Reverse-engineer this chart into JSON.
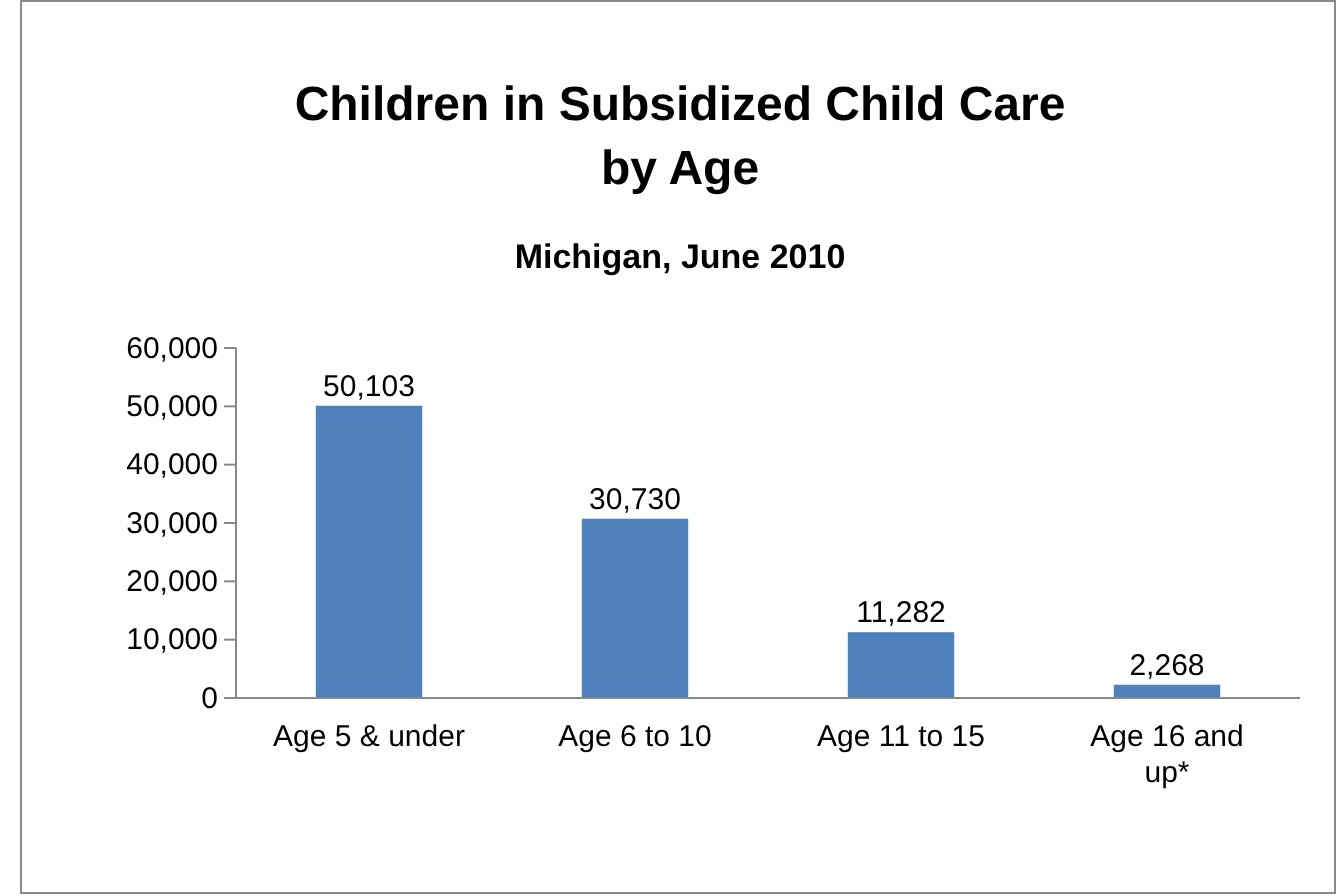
{
  "chart_data": {
    "type": "bar",
    "title": "Children in Subsidized Child Care by Age",
    "subtitle": "Michigan, June 2010",
    "categories": [
      "Age 5 & under",
      "Age 6 to 10",
      "Age 11 to 15",
      "Age 16 and up*"
    ],
    "values": [
      50103,
      30730,
      11282,
      2268
    ],
    "color": "#4f81bd",
    "ylim": [
      0,
      60000
    ],
    "yticks": [
      {
        "value": 0,
        "label": "0"
      },
      {
        "value": 10000,
        "label": "10,000"
      },
      {
        "value": 20000,
        "label": "20,000"
      },
      {
        "value": 30000,
        "label": "30,000"
      },
      {
        "value": 40000,
        "label": "40,000"
      },
      {
        "value": 50000,
        "label": "50,000"
      },
      {
        "value": 60000,
        "label": "60,000"
      }
    ],
    "value_labels": [
      "50,103",
      "30,730",
      "11,282",
      "2,268"
    ]
  }
}
